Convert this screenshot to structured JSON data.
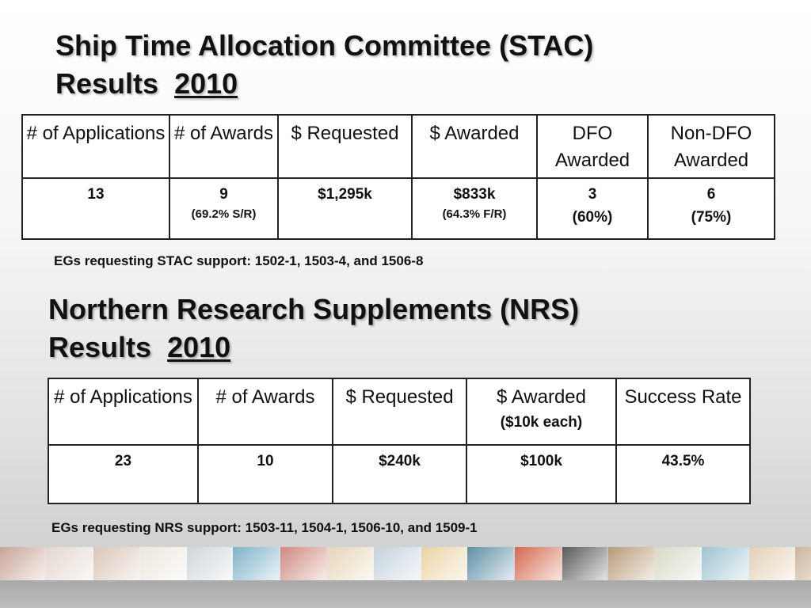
{
  "stac": {
    "title_line1": "Ship Time Allocation Committee (STAC)",
    "title_line2": "Results",
    "title_year": "2010",
    "headers": {
      "applications": "# of Applications",
      "awards": "# of Awards",
      "requested": "$ Requested",
      "awarded": "$ Awarded",
      "dfo_awarded": "DFO Awarded",
      "non_dfo_awarded": "Non-DFO Awarded"
    },
    "row": {
      "applications": "13",
      "awards": "9",
      "awards_note": "(69.2% S/R)",
      "requested": "$1,295k",
      "awarded": "$833k",
      "awarded_note": "(64.3% F/R)",
      "dfo_awarded": "3",
      "dfo_awarded_note": "(60%)",
      "non_dfo_awarded": "6",
      "non_dfo_awarded_note": "(75%)"
    },
    "note": "EGs requesting STAC support: 1502-1, 1503-4, and 1506-8"
  },
  "nrs": {
    "title_line1": "Northern Research Supplements (NRS)",
    "title_line2": "Results",
    "title_year": "2010",
    "headers": {
      "applications": "# of Applications",
      "awards": "# of Awards",
      "requested": "$ Requested",
      "awarded": "$ Awarded",
      "awarded_note": "($10k each)",
      "success_rate": "Success Rate"
    },
    "row": {
      "applications": "23",
      "awards": "10",
      "requested": "$240k",
      "awarded": "$100k",
      "success_rate": "43.5%"
    },
    "note": "EGs requesting NRS support: 1503-11, 1504-1, 1506-10, and 1509-1"
  },
  "footer_strip": {
    "tile_colors": [
      "#c9a49a",
      "#e3d6cf",
      "#d8c6b8",
      "#ece7de",
      "#cfd6da",
      "#7fb3c8",
      "#cf8a80",
      "#e6d5b8",
      "#c4d2dc",
      "#ead3a3",
      "#5f8fa6",
      "#d6684e",
      "#5a5a5a",
      "#b89a78",
      "#d8d9c8",
      "#9fc3d2",
      "#e3d0b6",
      "#cbb59e",
      "#7d7d7d"
    ]
  }
}
